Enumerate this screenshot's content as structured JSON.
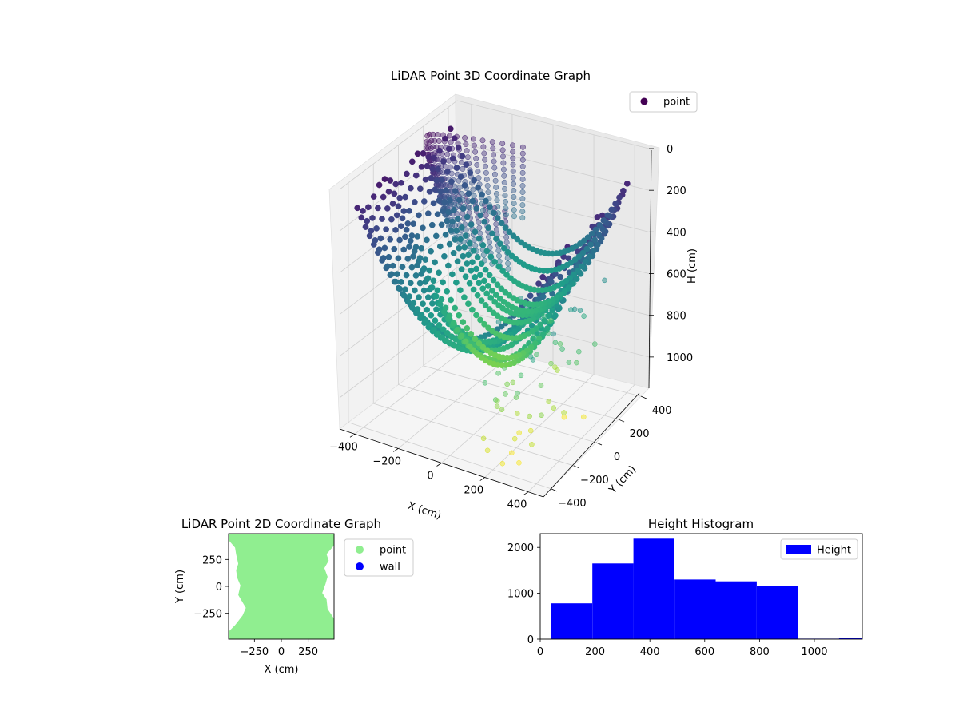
{
  "chart_data": [
    {
      "type": "scatter",
      "title": "LiDAR Point 3D Coordinate Graph",
      "xlabel": "X (cm)",
      "ylabel": "Y (cm)",
      "zlabel": "H (cm)",
      "xticks": [
        "−400",
        "−200",
        "0",
        "200",
        "400"
      ],
      "yticks": [
        "−400",
        "−200",
        "0",
        "200",
        "400"
      ],
      "zticks": [
        "0",
        "200",
        "400",
        "600",
        "800",
        "1000"
      ],
      "xlim": [
        -470,
        470
      ],
      "ylim": [
        -470,
        470
      ],
      "zlim": [
        0,
        1150
      ],
      "z_inverted": true,
      "colormap": "viridis",
      "legend": {
        "position": "top-right",
        "entries": [
          {
            "name": "point",
            "color": "#440154"
          }
        ]
      },
      "grid": true,
      "shape": {
        "description_free": true,
        "rings_top": {
          "z_range": [
            0,
            350
          ],
          "count": 12
        },
        "bowl": {
          "z_range": [
            100,
            900
          ],
          "count": 18
        },
        "sparse_tail": {
          "z_range": [
            500,
            1130
          ]
        }
      }
    },
    {
      "type": "scatter",
      "title": "LiDAR Point 2D Coordinate Graph",
      "xlabel": "X (cm)",
      "ylabel": "Y (cm)",
      "xticks": [
        "−250",
        "0",
        "250"
      ],
      "yticks": [
        "250",
        "0",
        "−250"
      ],
      "xlim": [
        -490,
        490
      ],
      "ylim": [
        -490,
        490
      ],
      "legend": {
        "position": "outside-right",
        "entries": [
          {
            "name": "point",
            "color": "#90ee90"
          },
          {
            "name": "wall",
            "color": "#0000ff"
          }
        ]
      }
    },
    {
      "type": "bar",
      "title": "Height Histogram",
      "xlabel": "",
      "ylabel": "",
      "xticks": [
        "0",
        "200",
        "400",
        "600",
        "800",
        "1000"
      ],
      "yticks": [
        "0",
        "1000",
        "2000"
      ],
      "xlim": [
        0,
        1175
      ],
      "ylim": [
        0,
        2300
      ],
      "bin_edges": [
        40,
        190,
        340,
        490,
        640,
        790,
        940,
        1090,
        1175
      ],
      "values": [
        780,
        1650,
        2190,
        1300,
        1260,
        1160,
        10,
        20
      ],
      "color": "#0000ff",
      "legend": {
        "position": "top-right",
        "entries": [
          {
            "name": "Height",
            "color": "#0000ff"
          }
        ]
      }
    }
  ]
}
